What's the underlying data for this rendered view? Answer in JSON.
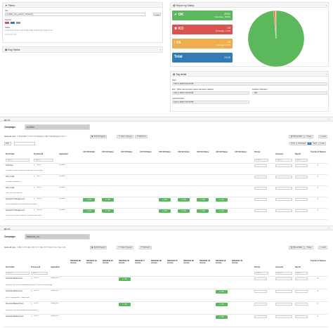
{
  "filters": {
    "title": "Filters",
    "tag_label": "Tag :",
    "tag_value": "vrmfate_run_jesenic_biosector",
    "load": "Load",
    "country_label": "Country",
    "status_label": "Status"
  },
  "report": {
    "title": "Report by Status",
    "ok": {
      "label": "OK",
      "count": "2091",
      "pct": "Percentage : 98.50%"
    },
    "ko": {
      "label": "KO",
      "count": "16",
      "pct": "Percentage : 0.75%"
    },
    "fa": {
      "label": "FA",
      "count": "16",
      "pct": "Percentage : 0.75%"
    },
    "total": {
      "label": "Total",
      "count": "2123"
    },
    "colors": {
      "ok": "#5cb85c",
      "ko": "#d9534f",
      "fa": "#f0ad4e",
      "total": "#337ab7"
    },
    "pie": {
      "ok": 2091,
      "ko": 16,
      "fa": 16
    }
  },
  "bug_status": {
    "title": "Bug Status"
  },
  "tag_detail": {
    "title": "Tag detail",
    "start_label": "Start :",
    "start_value": "Feb 5, 2020 5:16:23 PM",
    "end_label": "End : (When all execution queue has been cleared)",
    "end_value": "Feb 5, 2020 7:16:33 PM",
    "duration_label": "Duration (Minutes) :",
    "duration_value": "120",
    "last_exec_label": "Last Execution :",
    "last_exec_value": "Feb 5, 2020 7:16:33 PM"
  },
  "list1": {
    "title": "List",
    "campaign_label": "Campaign:",
    "campaign_value": "VCORM",
    "select_all": "Select all rows",
    "all_robot": "All (ROBOT)",
    "submit": "Submit Again",
    "open_queue": "Open Queue",
    "refresh": "Refresh",
    "show_hide": "Show/Hide",
    "save": "Save",
    "load": "Load",
    "first": "First",
    "previous": "Previous",
    "next": "Next",
    "page_size": "100",
    "headers": [
      "Test Folder",
      "Testcase ID",
      "Application",
      "UAT CB Nolbin",
      "UAT CE Status",
      "UAT FB Status",
      "UAT FR Status",
      "UAT GB Status",
      "UAT GE Status",
      "UAT GG Status",
      "UAT GR Status",
      "UAT GE Status",
      "Priority",
      "Comment",
      "Bug ID",
      "Total nb of Failures"
    ],
    "rows": [
      {
        "folder": "Collection",
        "desc": "Customer cannot a email item collection - no message",
        "id": "A0012",
        "app": "VCORM"
      },
      {
        "folder": "ICS_Credit",
        "desc": "Customer Update API",
        "id": "A0076",
        "app": "VCORM"
      },
      {
        "folder": "ICS_Credit",
        "desc": "Can I have my Order API",
        "id": "A0086",
        "app": "VCORM"
      },
      {
        "folder": "Newsletter Management",
        "desc": "Create newsletter and unsubscribe newsletter",
        "id": "NL0001",
        "app": "VCORM"
      },
      {
        "folder": "Newsletter Management",
        "desc": "Check URL of source Website - Customer with email",
        "id": "NL0002",
        "app": "VCORM"
      }
    ],
    "ok_text": "OK"
  },
  "list2": {
    "title": "List",
    "campaign_label": "Campaign:",
    "campaign_value": "TRESOR_ALL",
    "select_all": "Select all rows",
    "submit": "Submit Again",
    "open_queue": "Open Queue",
    "refresh": "Refresh",
    "show_hide": "Show/Hide",
    "save": "Save",
    "load": "Load",
    "headers": [
      "Test Folder",
      "Testcase ID",
      "Application",
      "PREVIEW BE chrome",
      "PREVIEW CH chrome",
      "PREVIEW ES chrome",
      "PREVIEW FR chrome",
      "PREVIEW IT chrome",
      "PREVIEW DE chrome",
      "PREVIEW PT chrome",
      "PREVIEW RU chrome",
      "PREVIEW UK chrome",
      "PREVIEW NL chrome",
      "PREVIEW US chrome",
      "Priority",
      "Comment",
      "Bug ID",
      "Total nb of Failures"
    ],
    "rows": [
      {
        "folder": "Checkout Basket Ano...",
        "desc": "[FS] Auto Pay - one shot Adyenheir payment - Check summary page",
        "id": "A0048",
        "app": "TRES_BCT"
      },
      {
        "folder": "Checkout Basket Ano...",
        "desc": "[FS] 3D cry payment - rebuild cuda",
        "id": "A0046",
        "app": "TRES_BCT"
      },
      {
        "folder": "Checkout Basket Prod...",
        "desc": "[FS] Auto Carte bleu and Add to basket product",
        "id": "A0042",
        "app": "TRES_BCT"
      },
      {
        "folder": "Checkout Basket Prod...",
        "desc": "",
        "id": "A0041",
        "app": "TRES_BCT"
      }
    ],
    "ok_text": "OK"
  }
}
